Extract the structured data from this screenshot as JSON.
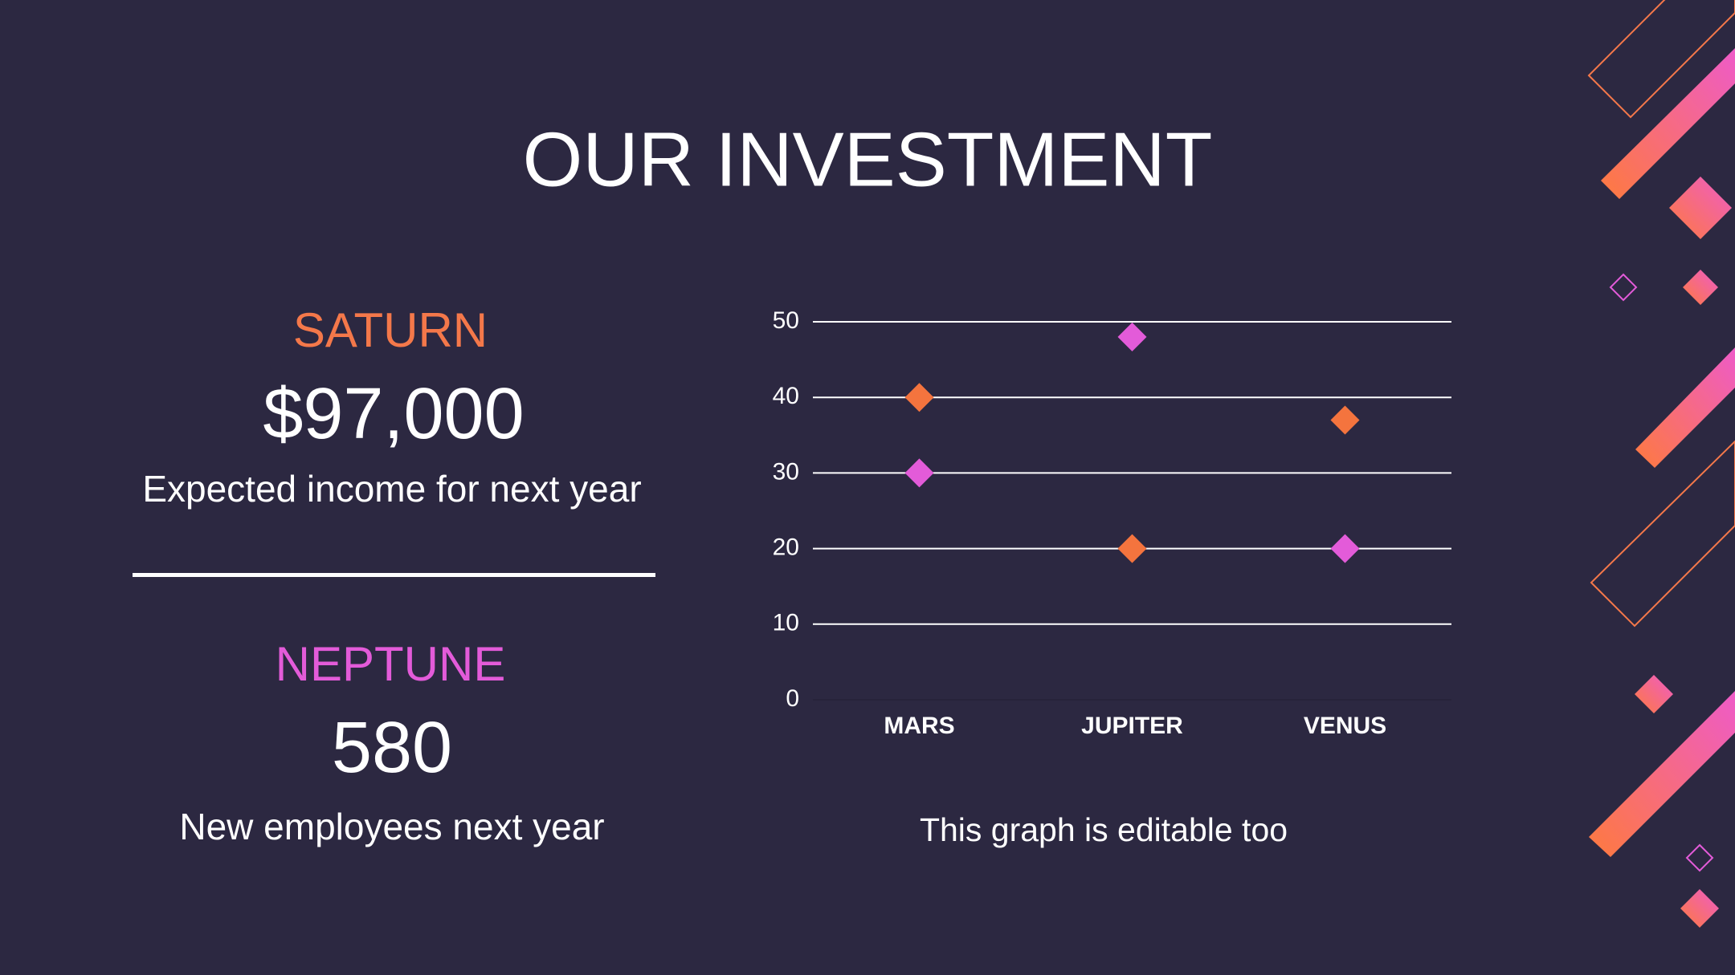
{
  "title": "OUR INVESTMENT",
  "stats": [
    {
      "label": "SATURN",
      "color": "#f4784a",
      "value": "$97,000",
      "description": "Expected income for next year"
    },
    {
      "label": "NEPTUNE",
      "color": "#e35bd9",
      "value": "580",
      "description": "New employees next year"
    }
  ],
  "chart_data": {
    "type": "scatter",
    "marker": "diamond",
    "categories": [
      "MARS",
      "JUPITER",
      "VENUS"
    ],
    "series": [
      {
        "color": "#f4743e",
        "values": [
          40,
          20,
          37
        ]
      },
      {
        "color": "#e35bd9",
        "values": [
          30,
          48,
          20
        ]
      }
    ],
    "ylim": [
      0,
      50
    ],
    "yticks": [
      0,
      10,
      20,
      30,
      40,
      50
    ],
    "grid": true
  },
  "caption": "This graph is editable too"
}
